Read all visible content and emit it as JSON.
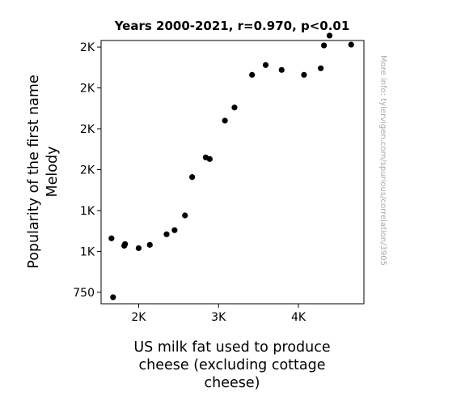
{
  "chart_data": {
    "type": "scatter",
    "title": "Years 2000-2021, r=0.970, p<0.01",
    "xlabel": [
      "US milk fat used to produce",
      "cheese (excluding cottage",
      "cheese)"
    ],
    "ylabel": [
      "Popularity of the first name",
      "Melody"
    ],
    "xlim": [
      1530,
      4820
    ],
    "ylim": [
      680,
      2290
    ],
    "xticks": [
      {
        "value": 2000,
        "label": "2K"
      },
      {
        "value": 3000,
        "label": "3K"
      },
      {
        "value": 4000,
        "label": "4K"
      }
    ],
    "yticks": [
      {
        "value": 750,
        "label": "750"
      },
      {
        "value": 1000,
        "label": "1K"
      },
      {
        "value": 1250,
        "label": "1K"
      },
      {
        "value": 1500,
        "label": "2K"
      },
      {
        "value": 1750,
        "label": "2K"
      },
      {
        "value": 2000,
        "label": "2K"
      },
      {
        "value": 2250,
        "label": "2K"
      }
    ],
    "grid": false,
    "point_color": "#000000",
    "x": [
      1660,
      1680,
      1820,
      1830,
      2000,
      2140,
      2350,
      2450,
      2580,
      2670,
      2840,
      2890,
      3080,
      3200,
      3420,
      3590,
      3790,
      4070,
      4280,
      4320,
      4390,
      4660
    ],
    "y": [
      1080,
      720,
      1035,
      1045,
      1020,
      1040,
      1105,
      1130,
      1220,
      1455,
      1575,
      1565,
      1800,
      1880,
      2080,
      2140,
      2110,
      2080,
      2120,
      2260,
      2320,
      2265
    ]
  },
  "source_note": "More info: tylervigen.com/spurious/correlation/3905"
}
